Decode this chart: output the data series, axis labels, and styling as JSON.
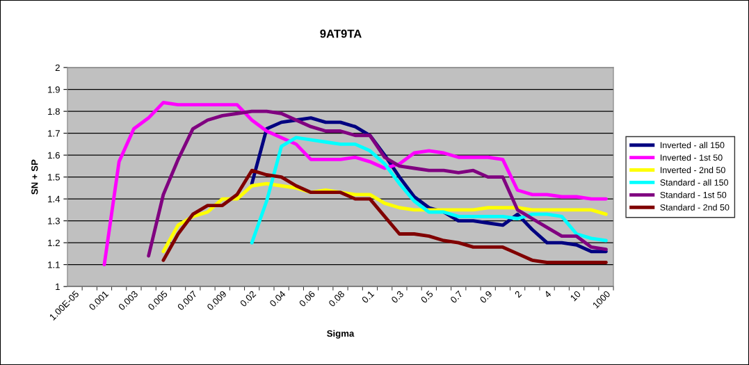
{
  "chart_data": {
    "type": "line",
    "title": "9AT9TA",
    "xlabel": "Sigma",
    "ylabel": "SN + SP",
    "categories": [
      "1.00E-05",
      null,
      "0.001",
      null,
      "0.003",
      null,
      "0.005",
      null,
      "0.007",
      null,
      "0.009",
      null,
      "0.02",
      null,
      "0.04",
      null,
      "0.06",
      null,
      "0.08",
      null,
      "0.1",
      null,
      "0.3",
      null,
      "0.5",
      null,
      "0.7",
      null,
      "0.9",
      null,
      "2",
      null,
      "4",
      null,
      "10",
      null,
      "1000"
    ],
    "ylim": [
      1,
      2
    ],
    "yticks": [
      1,
      1.1,
      1.2,
      1.3,
      1.4,
      1.5,
      1.6,
      1.7,
      1.8,
      1.9,
      2
    ],
    "grid": "y",
    "legend": "right",
    "marker": "none",
    "line_style": "solid",
    "series": [
      {
        "name": "Inverted - all 150",
        "color": "#000080",
        "values": [
          null,
          null,
          null,
          null,
          null,
          null,
          null,
          null,
          null,
          null,
          null,
          null,
          1.47,
          1.72,
          1.75,
          1.76,
          1.77,
          1.75,
          1.75,
          1.73,
          1.69,
          1.6,
          1.5,
          1.41,
          1.36,
          1.34,
          1.3,
          1.3,
          1.29,
          1.28,
          1.33,
          1.26,
          1.2,
          1.2,
          1.19,
          1.16,
          1.16
        ]
      },
      {
        "name": "Inverted - 1st 50",
        "color": "#ff00ff",
        "values": [
          null,
          null,
          1.1,
          1.57,
          1.72,
          1.77,
          1.84,
          1.83,
          1.83,
          1.83,
          1.83,
          1.83,
          1.76,
          1.71,
          1.68,
          1.65,
          1.58,
          1.58,
          1.58,
          1.59,
          1.57,
          1.54,
          1.56,
          1.61,
          1.62,
          1.61,
          1.59,
          1.59,
          1.59,
          1.58,
          1.44,
          1.42,
          1.42,
          1.41,
          1.41,
          1.4,
          1.4
        ]
      },
      {
        "name": "Inverted - 2nd 50",
        "color": "#ffff00",
        "values": [
          null,
          null,
          null,
          null,
          null,
          null,
          1.16,
          1.28,
          1.32,
          1.34,
          1.4,
          1.4,
          1.46,
          1.47,
          1.46,
          1.45,
          1.43,
          1.44,
          1.43,
          1.42,
          1.42,
          1.38,
          1.36,
          1.35,
          1.35,
          1.35,
          1.35,
          1.35,
          1.36,
          1.36,
          1.36,
          1.35,
          1.35,
          1.35,
          1.35,
          1.35,
          1.33
        ]
      },
      {
        "name": "Standard - all 150",
        "color": "#00ffff",
        "values": [
          null,
          null,
          null,
          null,
          null,
          null,
          null,
          null,
          null,
          null,
          null,
          null,
          1.2,
          1.39,
          1.64,
          1.68,
          1.67,
          1.66,
          1.65,
          1.65,
          1.62,
          1.56,
          1.47,
          1.39,
          1.34,
          1.34,
          1.32,
          1.32,
          1.32,
          1.32,
          1.31,
          1.33,
          1.33,
          1.32,
          1.24,
          1.22,
          1.21
        ]
      },
      {
        "name": "Standard - 1st 50",
        "color": "#800080",
        "values": [
          null,
          null,
          null,
          null,
          null,
          1.14,
          1.42,
          1.58,
          1.72,
          1.76,
          1.78,
          1.79,
          1.8,
          1.8,
          1.79,
          1.76,
          1.73,
          1.71,
          1.71,
          1.69,
          1.69,
          1.59,
          1.55,
          1.54,
          1.53,
          1.53,
          1.52,
          1.53,
          1.5,
          1.5,
          1.35,
          1.31,
          1.27,
          1.23,
          1.23,
          1.18,
          1.17
        ]
      },
      {
        "name": "Standard - 2nd 50",
        "color": "#800000",
        "values": [
          null,
          null,
          null,
          null,
          null,
          null,
          1.12,
          1.24,
          1.33,
          1.37,
          1.37,
          1.42,
          1.53,
          1.51,
          1.5,
          1.46,
          1.43,
          1.43,
          1.43,
          1.4,
          1.4,
          1.32,
          1.24,
          1.24,
          1.23,
          1.21,
          1.2,
          1.18,
          1.18,
          1.18,
          1.15,
          1.12,
          1.11,
          1.11,
          1.11,
          1.11,
          1.11
        ]
      }
    ]
  }
}
